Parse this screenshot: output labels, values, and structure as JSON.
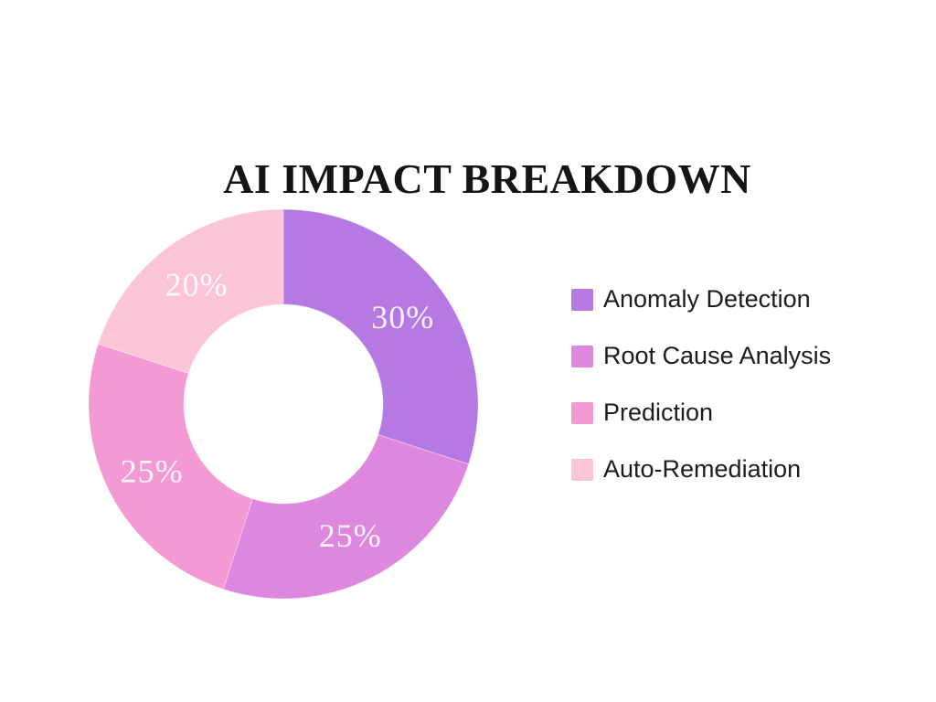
{
  "title": "AI IMPACT BREAKDOWN",
  "chart_data": {
    "type": "pie",
    "subtype": "donut",
    "title": "AI IMPACT BREAKDOWN",
    "start_angle_deg": 0,
    "direction": "clockwise",
    "inner_radius_ratio": 0.51,
    "legend_position": "right",
    "slice_label_color": "rgba(255,255,255,0.9)",
    "background_color": "#ffffff",
    "title_color": "#151515",
    "segments": [
      {
        "label": "Anomaly Detection",
        "value": 30,
        "display": "30%",
        "color": "#b678e3"
      },
      {
        "label": "Root Cause Analysis",
        "value": 25,
        "display": "25%",
        "color": "#dd88de"
      },
      {
        "label": "Prediction",
        "value": 25,
        "display": "25%",
        "color": "#f399d3"
      },
      {
        "label": "Auto-Remediation",
        "value": 20,
        "display": "20%",
        "color": "#fcc4d7"
      }
    ]
  }
}
